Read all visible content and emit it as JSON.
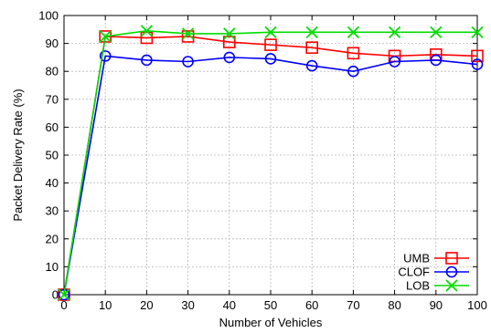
{
  "chart_data": {
    "type": "line",
    "title": "",
    "xlabel": "Number of Vehicles",
    "ylabel": "Packet Delivery Rate (%)",
    "xlim": [
      0,
      100
    ],
    "ylim": [
      0,
      100
    ],
    "xticks": [
      "0",
      "10",
      "20",
      "30",
      "40",
      "50",
      "60",
      "70",
      "80",
      "90",
      "100"
    ],
    "yticks": [
      "0",
      "10",
      "20",
      "30",
      "40",
      "50",
      "60",
      "70",
      "80",
      "90",
      "100"
    ],
    "grid": true,
    "legend_position": "bottom-right",
    "x": [
      0,
      10,
      20,
      30,
      40,
      50,
      60,
      70,
      80,
      90,
      100
    ],
    "series": [
      {
        "name": "UMB",
        "marker": "square",
        "color": "#ff0000",
        "values": [
          0,
          92.5,
          92,
          92.5,
          90.5,
          89.5,
          88.5,
          86.5,
          85.5,
          86,
          85.5
        ]
      },
      {
        "name": "CLOF",
        "marker": "circle",
        "color": "#0000ff",
        "values": [
          0,
          85.5,
          84,
          83.5,
          85,
          84.5,
          82,
          80,
          83.5,
          84,
          82.5
        ]
      },
      {
        "name": "LOB",
        "marker": "x",
        "color": "#00dd00",
        "values": [
          0,
          92.5,
          94.5,
          93.5,
          93.5,
          94,
          94,
          94,
          94,
          94,
          94
        ]
      }
    ]
  }
}
